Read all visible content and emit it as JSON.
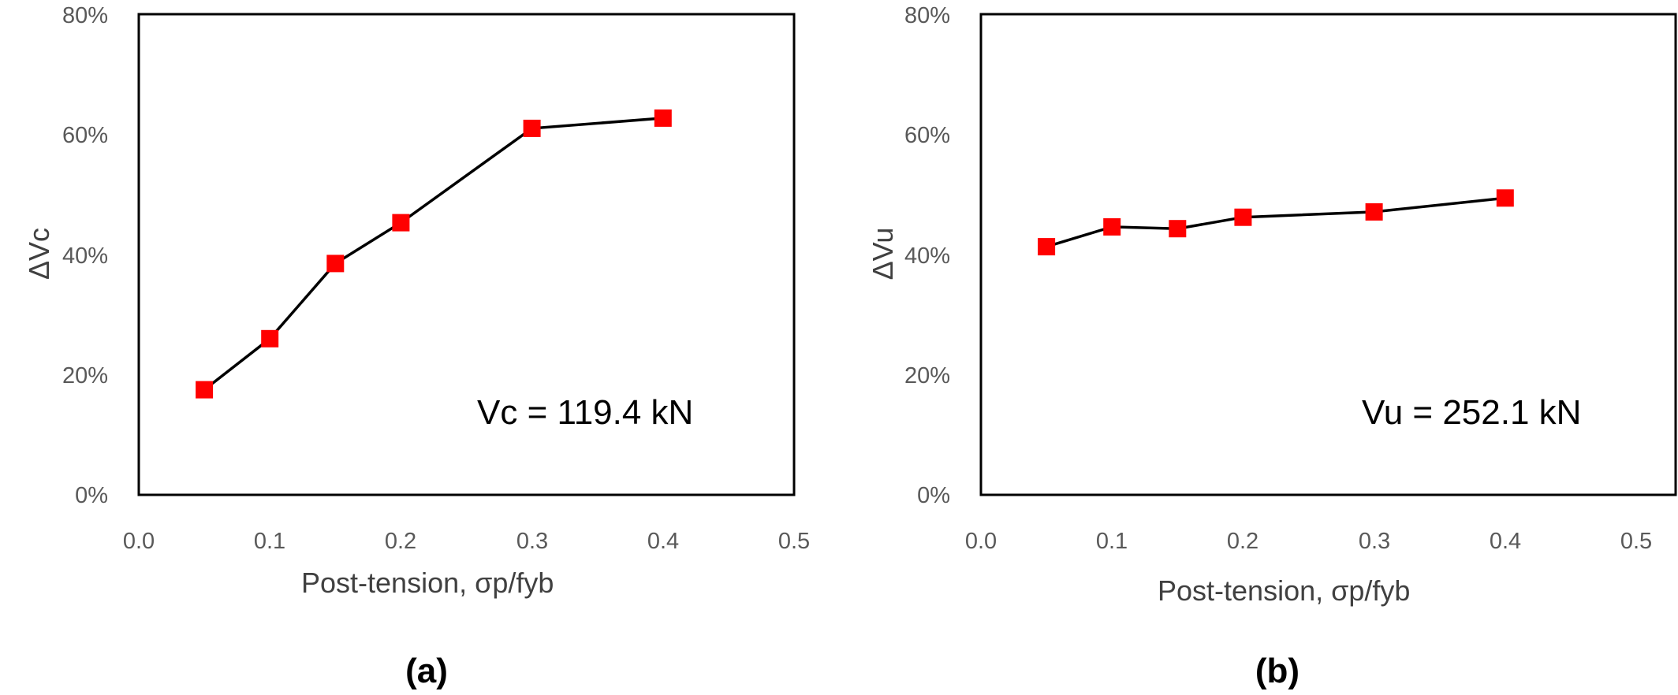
{
  "chart_data": [
    {
      "type": "line",
      "panel_label": "(a)",
      "xlabel": "Post-tension, σp/fyb",
      "ylabel": "ΔVc",
      "x_tick_labels": [
        "0.0",
        "0.1",
        "0.2",
        "0.3",
        "0.4",
        "0.5"
      ],
      "y_tick_labels": [
        "0%",
        "20%",
        "40%",
        "60%",
        "80%"
      ],
      "xlim": [
        0,
        0.5
      ],
      "ylim": [
        0,
        80
      ],
      "y_unit": "%",
      "annotation": "Vc = 119.4 kN",
      "grid": false,
      "series": [
        {
          "x": [
            0.05,
            0.1,
            0.15,
            0.2,
            0.3,
            0.4
          ],
          "y": [
            17.5,
            26.0,
            38.5,
            45.3,
            61.0,
            62.7
          ],
          "color": "#ff0000",
          "line_color": "#000000",
          "marker": "square"
        }
      ]
    },
    {
      "type": "line",
      "panel_label": "(b)",
      "xlabel": "Post-tension, σp/fyb",
      "ylabel": "ΔVu",
      "x_tick_labels": [
        "0.0",
        "0.1",
        "0.2",
        "0.3",
        "0.4",
        "0.5"
      ],
      "y_tick_labels": [
        "0%",
        "20%",
        "40%",
        "60%",
        "80%"
      ],
      "xlim": [
        0,
        0.5
      ],
      "ylim": [
        0,
        80
      ],
      "y_unit": "%",
      "annotation": "Vu = 252.1 kN",
      "grid": false,
      "series": [
        {
          "x": [
            0.05,
            0.1,
            0.15,
            0.2,
            0.3,
            0.4
          ],
          "y": [
            41.3,
            44.6,
            44.3,
            46.2,
            47.1,
            49.4
          ],
          "color": "#ff0000",
          "line_color": "#000000",
          "marker": "square"
        }
      ]
    }
  ]
}
